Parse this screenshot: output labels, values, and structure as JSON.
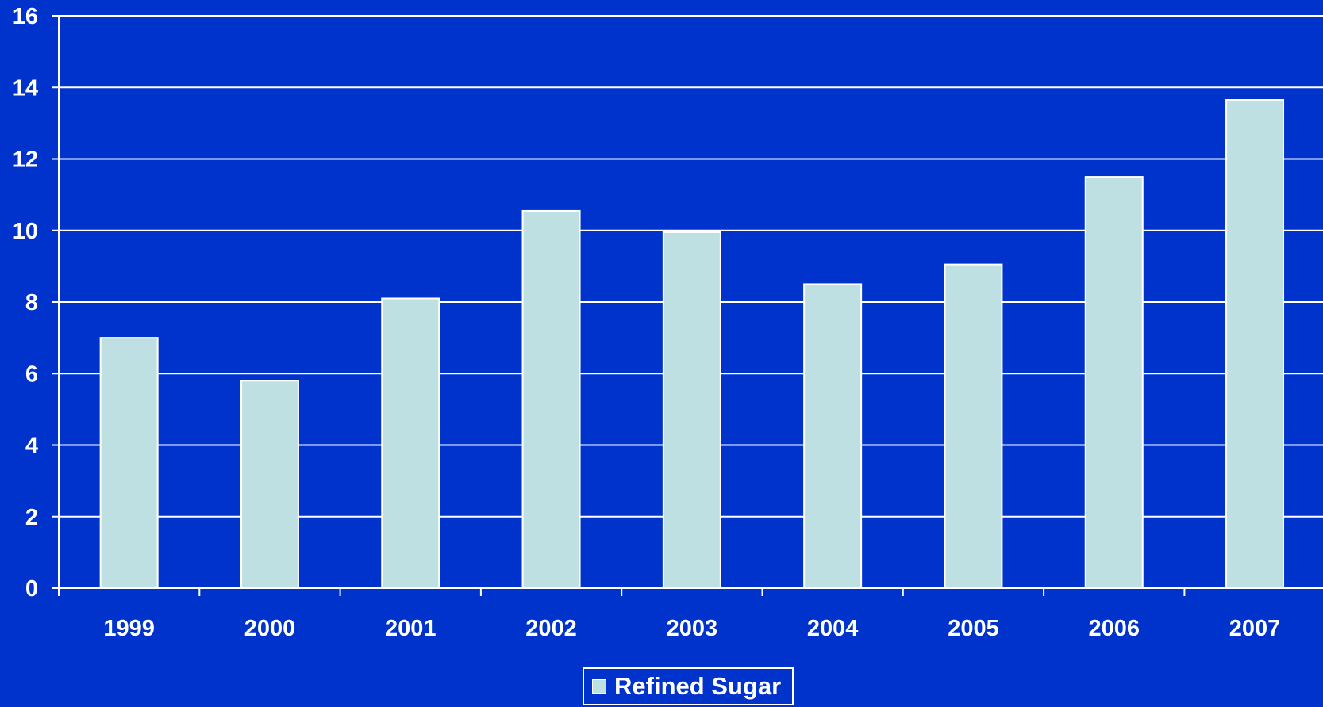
{
  "colors": {
    "background": "#0033cc",
    "bar": "#bfe0e3",
    "gridline": "#ffffff",
    "text": "#ffffff"
  },
  "chart_data": {
    "type": "bar",
    "categories": [
      "1999",
      "2000",
      "2001",
      "2002",
      "2003",
      "2004",
      "2005",
      "2006",
      "2007"
    ],
    "series": [
      {
        "name": "Refined Sugar",
        "values": [
          7.0,
          5.8,
          8.1,
          10.55,
          9.95,
          8.5,
          9.05,
          11.5,
          13.65
        ]
      }
    ],
    "ylim": [
      0,
      16
    ],
    "yticks": [
      0,
      2,
      4,
      6,
      8,
      10,
      12,
      14,
      16
    ],
    "grid": true,
    "legend_position": "bottom-center",
    "title": "",
    "xlabel": "",
    "ylabel": ""
  }
}
